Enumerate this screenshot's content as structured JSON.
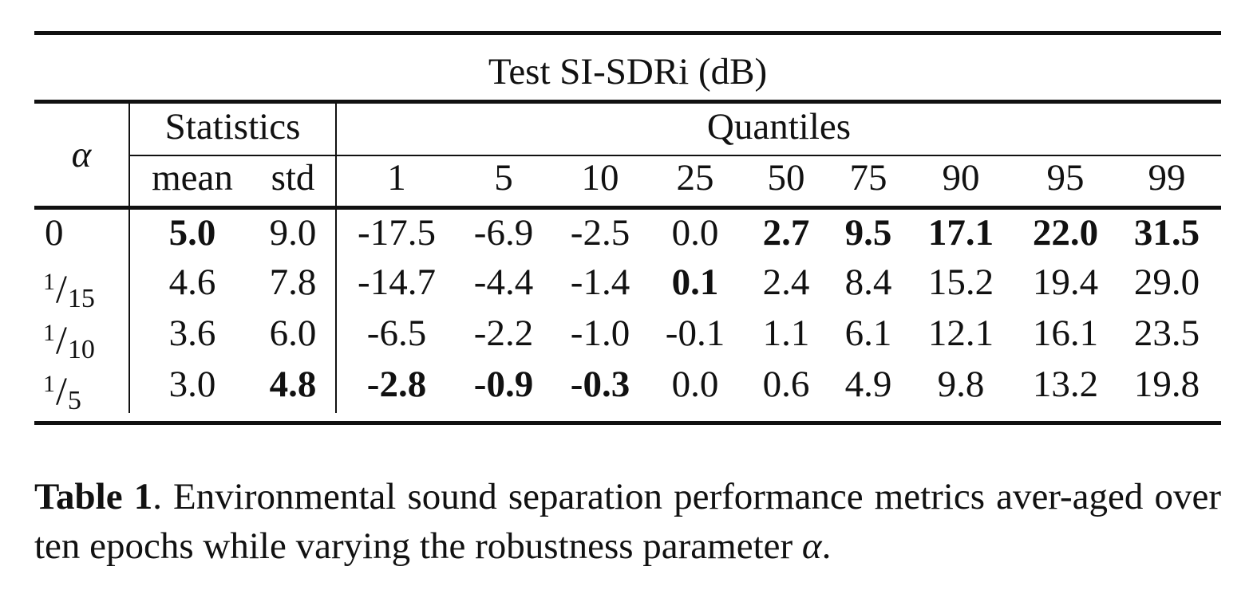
{
  "table": {
    "title": "Test SI-SDRi (dB)",
    "alpha_header": "α",
    "group_statistics": "Statistics",
    "group_quantiles": "Quantiles",
    "columns": [
      "mean",
      "std",
      "1",
      "5",
      "10",
      "25",
      "50",
      "75",
      "90",
      "95",
      "99"
    ],
    "rows": [
      {
        "alpha": {
          "plain": "0"
        },
        "cells": [
          {
            "v": "5.0",
            "bold": true
          },
          {
            "v": "9.0",
            "bold": false
          },
          {
            "v": "-17.5",
            "bold": false
          },
          {
            "v": "-6.9",
            "bold": false
          },
          {
            "v": "-2.5",
            "bold": false
          },
          {
            "v": "0.0",
            "bold": false
          },
          {
            "v": "2.7",
            "bold": true
          },
          {
            "v": "9.5",
            "bold": true
          },
          {
            "v": "17.1",
            "bold": true
          },
          {
            "v": "22.0",
            "bold": true
          },
          {
            "v": "31.5",
            "bold": true
          }
        ]
      },
      {
        "alpha": {
          "num": "1",
          "den": "15"
        },
        "cells": [
          {
            "v": "4.6",
            "bold": false
          },
          {
            "v": "7.8",
            "bold": false
          },
          {
            "v": "-14.7",
            "bold": false
          },
          {
            "v": "-4.4",
            "bold": false
          },
          {
            "v": "-1.4",
            "bold": false
          },
          {
            "v": "0.1",
            "bold": true
          },
          {
            "v": "2.4",
            "bold": false
          },
          {
            "v": "8.4",
            "bold": false
          },
          {
            "v": "15.2",
            "bold": false
          },
          {
            "v": "19.4",
            "bold": false
          },
          {
            "v": "29.0",
            "bold": false
          }
        ]
      },
      {
        "alpha": {
          "num": "1",
          "den": "10"
        },
        "cells": [
          {
            "v": "3.6",
            "bold": false
          },
          {
            "v": "6.0",
            "bold": false
          },
          {
            "v": "-6.5",
            "bold": false
          },
          {
            "v": "-2.2",
            "bold": false
          },
          {
            "v": "-1.0",
            "bold": false
          },
          {
            "v": "-0.1",
            "bold": false
          },
          {
            "v": "1.1",
            "bold": false
          },
          {
            "v": "6.1",
            "bold": false
          },
          {
            "v": "12.1",
            "bold": false
          },
          {
            "v": "16.1",
            "bold": false
          },
          {
            "v": "23.5",
            "bold": false
          }
        ]
      },
      {
        "alpha": {
          "num": "1",
          "den": "5"
        },
        "cells": [
          {
            "v": "3.0",
            "bold": false
          },
          {
            "v": "4.8",
            "bold": true
          },
          {
            "v": "-2.8",
            "bold": true
          },
          {
            "v": "-0.9",
            "bold": true
          },
          {
            "v": "-0.3",
            "bold": true
          },
          {
            "v": "0.0",
            "bold": false
          },
          {
            "v": "0.6",
            "bold": false
          },
          {
            "v": "4.9",
            "bold": false
          },
          {
            "v": "9.8",
            "bold": false
          },
          {
            "v": "13.2",
            "bold": false
          },
          {
            "v": "19.8",
            "bold": false
          }
        ]
      }
    ]
  },
  "caption": {
    "label": "Table 1",
    "text": ". Environmental sound separation performance metrics aver-aged over ten epochs while varying the robustness parameter ",
    "symbol": "α",
    "end": "."
  }
}
